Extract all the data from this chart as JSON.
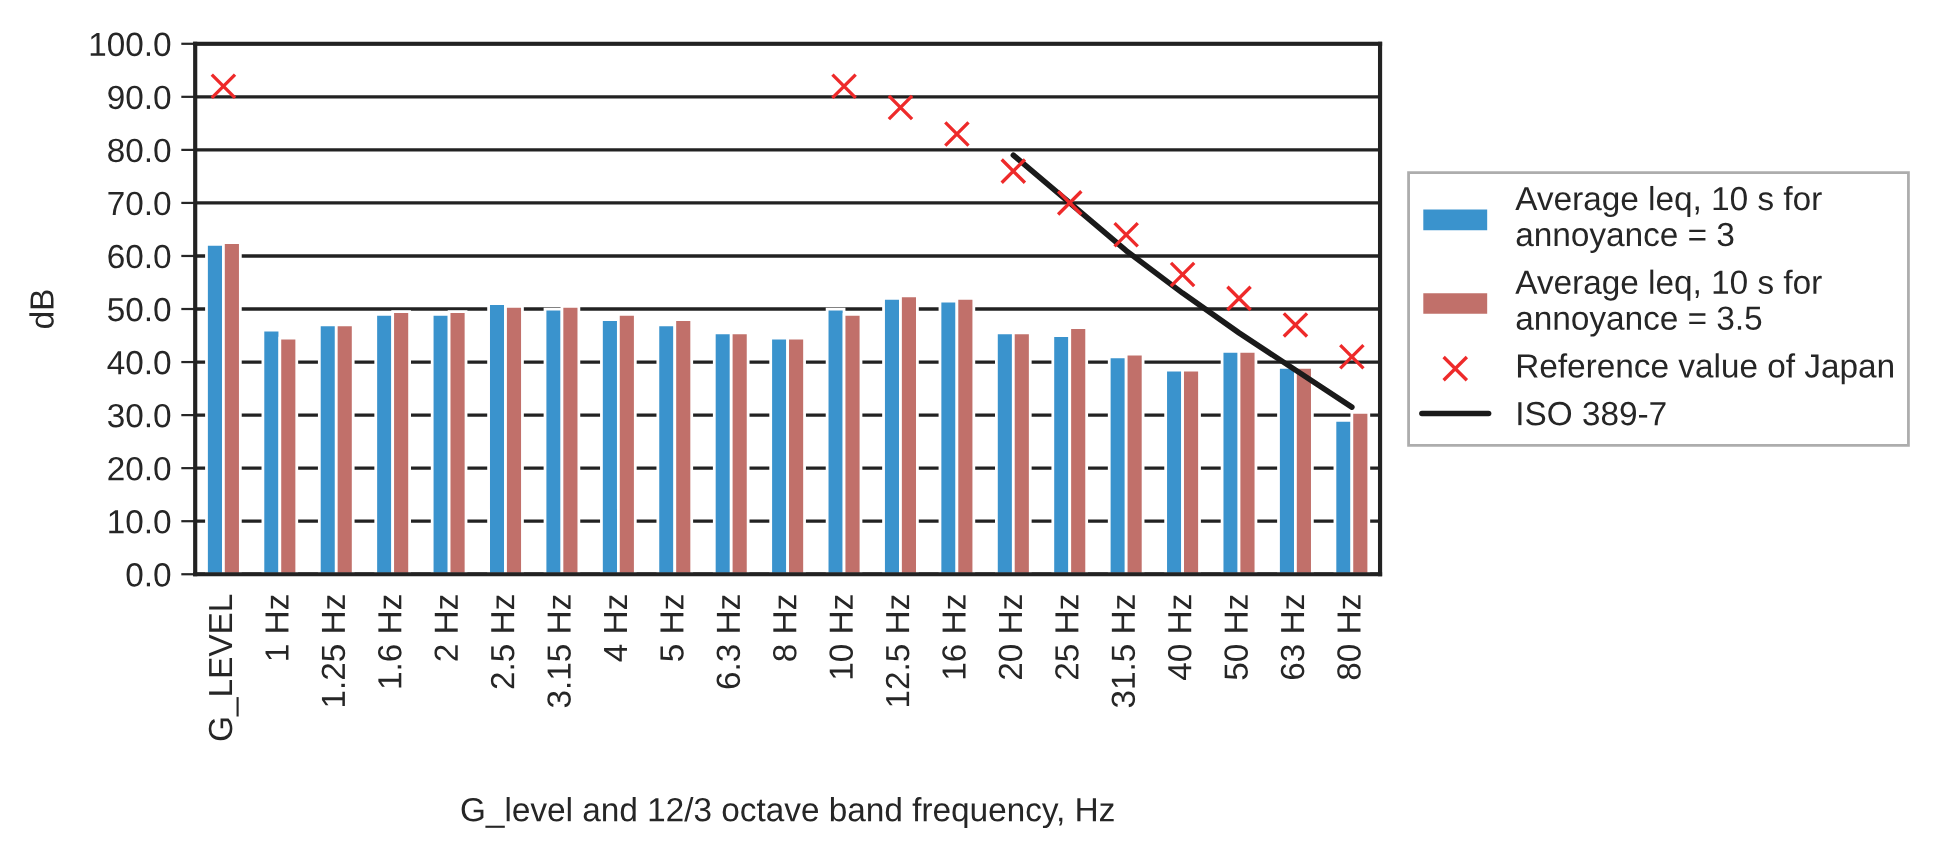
{
  "chart_data": {
    "type": "bar",
    "xlabel": "G_level and 12/3 octave band frequency, Hz",
    "ylabel": "dB",
    "categories": [
      "G_LEVEL",
      "1 Hz",
      "1.25 Hz",
      "1.6 Hz",
      "2 Hz",
      "2.5 Hz",
      "3.15 Hz",
      "4 Hz",
      "5 Hz",
      "6.3 Hz",
      "8 Hz",
      "10 Hz",
      "12.5 Hz",
      "16 Hz",
      "20 Hz",
      "25 Hz",
      "31.5 Hz",
      "40 Hz",
      "50 Hz",
      "63 Hz",
      "80 Hz"
    ],
    "series": [
      {
        "name": "Average leq, 10 s for\nannoyance = 3",
        "color": "#3a93cd",
        "values": [
          62.2,
          46.0,
          47.0,
          49.0,
          49.0,
          51.0,
          50.0,
          48.0,
          47.0,
          45.5,
          44.5,
          50.0,
          52.0,
          51.5,
          45.5,
          45.0,
          41.0,
          38.5,
          42.0,
          39.0,
          29.0
        ]
      },
      {
        "name": "Average leq, 10 s for\nannoyance = 3.5",
        "color": "#c1706a",
        "values": [
          62.5,
          44.5,
          47.0,
          49.5,
          49.5,
          50.5,
          50.5,
          49.0,
          48.0,
          45.5,
          44.5,
          49.0,
          52.5,
          52.0,
          45.5,
          46.5,
          41.5,
          38.5,
          42.0,
          39.0,
          30.5
        ]
      },
      {
        "name": "Reference value of Japan",
        "type": "scatter",
        "marker": "cross",
        "color": "#ee2a2a",
        "values": [
          92,
          null,
          null,
          null,
          null,
          null,
          null,
          null,
          null,
          null,
          null,
          92,
          88,
          83,
          76,
          70,
          64,
          56.5,
          52,
          47,
          41
        ]
      },
      {
        "name": "ISO 389-7",
        "type": "line",
        "line_style": "solid",
        "marker": "none",
        "color": "#1a1a1a",
        "values": [
          null,
          null,
          null,
          null,
          null,
          null,
          null,
          null,
          null,
          null,
          null,
          null,
          null,
          null,
          79,
          70,
          61,
          53,
          45.5,
          38.5,
          31.5
        ]
      }
    ],
    "ylim": [
      0,
      100
    ],
    "yticks": [
      {
        "value": 0,
        "label": "0.0"
      },
      {
        "value": 10,
        "label": "10.0"
      },
      {
        "value": 20,
        "label": "20.0"
      },
      {
        "value": 30,
        "label": "30.0"
      },
      {
        "value": 40,
        "label": "40.0"
      },
      {
        "value": 50,
        "label": "50.0"
      },
      {
        "value": 60,
        "label": "60.0"
      },
      {
        "value": 70,
        "label": "70.0"
      },
      {
        "value": 80,
        "label": "80.0"
      },
      {
        "value": 90,
        "label": "90.0"
      },
      {
        "value": 100,
        "label": "100.0"
      }
    ],
    "grid": "y",
    "legend": "right"
  }
}
